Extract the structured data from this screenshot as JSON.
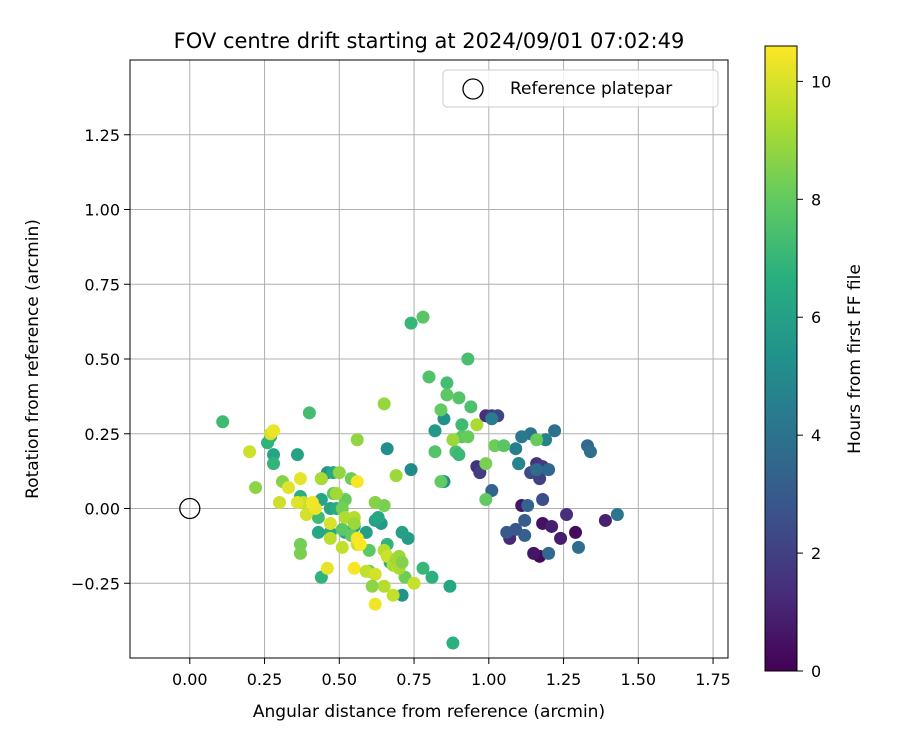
{
  "chart_data": {
    "type": "scatter",
    "title": "FOV centre drift starting at 2024/09/01 07:02:49",
    "xlabel": "Angular distance from reference (arcmin)",
    "ylabel": "Rotation from reference (arcmin)",
    "xlim": [
      -0.2,
      1.8
    ],
    "ylim": [
      -0.5,
      1.5
    ],
    "xticks": [
      "0.00",
      "0.25",
      "0.50",
      "0.75",
      "1.00",
      "1.25",
      "1.50",
      "1.75"
    ],
    "yticks": [
      "−0.25",
      "0.00",
      "0.25",
      "0.50",
      "0.75",
      "1.00",
      "1.25"
    ],
    "grid": true,
    "legend": {
      "placement": "top-right",
      "entries": [
        "Reference platepar"
      ]
    },
    "colorbar": {
      "label": "Hours from first FF file",
      "min": 0,
      "max": 10.6,
      "ticks": [
        "0",
        "2",
        "4",
        "6",
        "8",
        "10"
      ],
      "colormap": "viridis"
    },
    "reference_point": {
      "x": 0.0,
      "y": 0.0
    },
    "points": [
      {
        "x": 1.17,
        "y": -0.16,
        "h": 0.2
      },
      {
        "x": 1.15,
        "y": -0.15,
        "h": 0.6
      },
      {
        "x": 1.29,
        "y": -0.08,
        "h": 0.3
      },
      {
        "x": 1.24,
        "y": -0.1,
        "h": 0.8
      },
      {
        "x": 1.18,
        "y": -0.05,
        "h": 0.5
      },
      {
        "x": 1.11,
        "y": 0.01,
        "h": 0.6
      },
      {
        "x": 1.07,
        "y": -0.1,
        "h": 1.2
      },
      {
        "x": 1.21,
        "y": -0.06,
        "h": 0.9
      },
      {
        "x": 1.26,
        "y": -0.02,
        "h": 1.4
      },
      {
        "x": 1.39,
        "y": -0.04,
        "h": 1.0
      },
      {
        "x": 1.16,
        "y": 0.15,
        "h": 1.6
      },
      {
        "x": 1.18,
        "y": 0.14,
        "h": 1.8
      },
      {
        "x": 1.1,
        "y": 0.15,
        "h": 2.2
      },
      {
        "x": 1.14,
        "y": 0.12,
        "h": 2.4
      },
      {
        "x": 1.17,
        "y": 0.1,
        "h": 2.0
      },
      {
        "x": 1.18,
        "y": 0.03,
        "h": 2.5
      },
      {
        "x": 0.96,
        "y": 0.14,
        "h": 1.5
      },
      {
        "x": 0.97,
        "y": 0.12,
        "h": 1.9
      },
      {
        "x": 0.99,
        "y": 0.31,
        "h": 1.3
      },
      {
        "x": 1.01,
        "y": 0.31,
        "h": 1.7
      },
      {
        "x": 1.03,
        "y": 0.31,
        "h": 2.2
      },
      {
        "x": 1.06,
        "y": -0.08,
        "h": 3.0
      },
      {
        "x": 1.12,
        "y": -0.09,
        "h": 3.2
      },
      {
        "x": 1.13,
        "y": 0.01,
        "h": 3.4
      },
      {
        "x": 1.12,
        "y": -0.04,
        "h": 3.1
      },
      {
        "x": 1.09,
        "y": -0.07,
        "h": 2.9
      },
      {
        "x": 1.2,
        "y": -0.15,
        "h": 3.6
      },
      {
        "x": 1.3,
        "y": -0.13,
        "h": 3.8
      },
      {
        "x": 1.01,
        "y": 0.06,
        "h": 3.4
      },
      {
        "x": 1.16,
        "y": 0.13,
        "h": 3.7
      },
      {
        "x": 1.2,
        "y": 0.13,
        "h": 3.5
      },
      {
        "x": 1.14,
        "y": 0.25,
        "h": 4.0
      },
      {
        "x": 1.11,
        "y": 0.24,
        "h": 4.2
      },
      {
        "x": 1.22,
        "y": 0.26,
        "h": 3.9
      },
      {
        "x": 1.33,
        "y": 0.21,
        "h": 3.6
      },
      {
        "x": 1.34,
        "y": 0.19,
        "h": 3.8
      },
      {
        "x": 1.43,
        "y": -0.02,
        "h": 4.1
      },
      {
        "x": 1.01,
        "y": 0.3,
        "h": 4.4
      },
      {
        "x": 1.19,
        "y": 0.23,
        "h": 4.6
      },
      {
        "x": 1.09,
        "y": 0.2,
        "h": 4.5
      },
      {
        "x": 1.1,
        "y": 0.15,
        "h": 4.8
      },
      {
        "x": 0.74,
        "y": 0.13,
        "h": 5.0
      },
      {
        "x": 0.82,
        "y": 0.26,
        "h": 5.6
      },
      {
        "x": 0.85,
        "y": 0.3,
        "h": 5.3
      },
      {
        "x": 0.85,
        "y": 0.09,
        "h": 5.1
      },
      {
        "x": 0.66,
        "y": 0.2,
        "h": 5.2
      },
      {
        "x": 0.71,
        "y": -0.29,
        "h": 5.4
      },
      {
        "x": 0.73,
        "y": -0.1,
        "h": 5.8
      },
      {
        "x": 0.71,
        "y": -0.08,
        "h": 6.0
      },
      {
        "x": 0.64,
        "y": -0.05,
        "h": 5.7
      },
      {
        "x": 0.62,
        "y": -0.04,
        "h": 6.1
      },
      {
        "x": 0.63,
        "y": -0.03,
        "h": 6.3
      },
      {
        "x": 0.59,
        "y": -0.08,
        "h": 5.9
      },
      {
        "x": 0.55,
        "y": -0.06,
        "h": 6.2
      },
      {
        "x": 0.52,
        "y": -0.08,
        "h": 6.0
      },
      {
        "x": 0.47,
        "y": -0.08,
        "h": 6.4
      },
      {
        "x": 0.43,
        "y": -0.08,
        "h": 6.3
      },
      {
        "x": 0.44,
        "y": 0.1,
        "h": 5.8
      },
      {
        "x": 0.46,
        "y": 0.12,
        "h": 5.6
      },
      {
        "x": 0.48,
        "y": 0.12,
        "h": 6.4
      },
      {
        "x": 0.47,
        "y": 0.0,
        "h": 6.1
      },
      {
        "x": 0.44,
        "y": 0.03,
        "h": 6.2
      },
      {
        "x": 0.49,
        "y": 0.0,
        "h": 6.6
      },
      {
        "x": 0.66,
        "y": -0.12,
        "h": 6.8
      },
      {
        "x": 0.67,
        "y": -0.18,
        "h": 6.5
      },
      {
        "x": 0.28,
        "y": 0.18,
        "h": 6.2
      },
      {
        "x": 0.27,
        "y": 0.24,
        "h": 6.6
      },
      {
        "x": 0.26,
        "y": 0.22,
        "h": 6.8
      },
      {
        "x": 0.28,
        "y": 0.15,
        "h": 6.9
      },
      {
        "x": 0.36,
        "y": 0.18,
        "h": 6.1
      },
      {
        "x": 0.37,
        "y": 0.04,
        "h": 6.7
      },
      {
        "x": 0.44,
        "y": -0.23,
        "h": 6.8
      },
      {
        "x": 0.87,
        "y": -0.26,
        "h": 6.3
      },
      {
        "x": 0.81,
        "y": -0.23,
        "h": 6.7
      },
      {
        "x": 0.88,
        "y": -0.45,
        "h": 6.7
      },
      {
        "x": 0.78,
        "y": -0.2,
        "h": 7.0
      },
      {
        "x": 0.78,
        "y": 0.64,
        "h": 7.8
      },
      {
        "x": 0.74,
        "y": 0.62,
        "h": 7.0
      },
      {
        "x": 0.93,
        "y": 0.5,
        "h": 7.4
      },
      {
        "x": 0.8,
        "y": 0.44,
        "h": 7.6
      },
      {
        "x": 0.86,
        "y": 0.42,
        "h": 7.3
      },
      {
        "x": 0.86,
        "y": 0.38,
        "h": 7.9
      },
      {
        "x": 0.9,
        "y": 0.37,
        "h": 7.7
      },
      {
        "x": 0.84,
        "y": 0.33,
        "h": 8.0
      },
      {
        "x": 0.94,
        "y": 0.34,
        "h": 7.5
      },
      {
        "x": 0.91,
        "y": 0.28,
        "h": 7.2
      },
      {
        "x": 0.89,
        "y": 0.19,
        "h": 7.4
      },
      {
        "x": 0.9,
        "y": 0.18,
        "h": 7.1
      },
      {
        "x": 0.82,
        "y": 0.19,
        "h": 7.7
      },
      {
        "x": 0.84,
        "y": 0.09,
        "h": 8.0
      },
      {
        "x": 0.91,
        "y": 0.24,
        "h": 7.9
      },
      {
        "x": 0.93,
        "y": 0.24,
        "h": 8.1
      },
      {
        "x": 1.02,
        "y": 0.21,
        "h": 8.2
      },
      {
        "x": 1.05,
        "y": 0.21,
        "h": 7.8
      },
      {
        "x": 0.99,
        "y": 0.15,
        "h": 8.4
      },
      {
        "x": 0.99,
        "y": 0.03,
        "h": 8.0
      },
      {
        "x": 1.16,
        "y": 0.23,
        "h": 8.1
      },
      {
        "x": 0.11,
        "y": 0.29,
        "h": 7.2
      },
      {
        "x": 0.4,
        "y": 0.32,
        "h": 7.3
      },
      {
        "x": 0.43,
        "y": -0.03,
        "h": 7.2
      },
      {
        "x": 0.48,
        "y": 0.05,
        "h": 7.9
      },
      {
        "x": 0.52,
        "y": 0.03,
        "h": 8.1
      },
      {
        "x": 0.51,
        "y": 0.0,
        "h": 8.3
      },
      {
        "x": 0.51,
        "y": -0.07,
        "h": 7.9
      },
      {
        "x": 0.54,
        "y": -0.09,
        "h": 8.0
      },
      {
        "x": 0.6,
        "y": -0.14,
        "h": 7.9
      },
      {
        "x": 0.62,
        "y": 0.02,
        "h": 8.6
      },
      {
        "x": 0.65,
        "y": 0.01,
        "h": 8.4
      },
      {
        "x": 0.5,
        "y": 0.12,
        "h": 8.8
      },
      {
        "x": 0.54,
        "y": 0.1,
        "h": 8.2
      },
      {
        "x": 0.37,
        "y": -0.12,
        "h": 8.3
      },
      {
        "x": 0.37,
        "y": -0.15,
        "h": 8.4
      },
      {
        "x": 0.22,
        "y": 0.07,
        "h": 8.7
      },
      {
        "x": 0.31,
        "y": 0.09,
        "h": 8.6
      },
      {
        "x": 0.6,
        "y": -0.21,
        "h": 8.0
      },
      {
        "x": 0.72,
        "y": -0.23,
        "h": 8.2
      },
      {
        "x": 0.65,
        "y": 0.35,
        "h": 8.9
      },
      {
        "x": 0.56,
        "y": 0.23,
        "h": 8.8
      },
      {
        "x": 0.88,
        "y": 0.23,
        "h": 9.0
      },
      {
        "x": 0.96,
        "y": 0.28,
        "h": 9.2
      },
      {
        "x": 0.69,
        "y": 0.11,
        "h": 9.0
      },
      {
        "x": 0.44,
        "y": 0.1,
        "h": 9.2
      },
      {
        "x": 0.49,
        "y": 0.05,
        "h": 9.1
      },
      {
        "x": 0.52,
        "y": -0.03,
        "h": 9.3
      },
      {
        "x": 0.55,
        "y": -0.03,
        "h": 9.4
      },
      {
        "x": 0.51,
        "y": -0.13,
        "h": 9.6
      },
      {
        "x": 0.56,
        "y": -0.12,
        "h": 9.7
      },
      {
        "x": 0.47,
        "y": -0.1,
        "h": 9.5
      },
      {
        "x": 0.47,
        "y": -0.05,
        "h": 10.0
      },
      {
        "x": 0.39,
        "y": -0.02,
        "h": 9.9
      },
      {
        "x": 0.38,
        "y": 0.02,
        "h": 9.7
      },
      {
        "x": 0.3,
        "y": 0.02,
        "h": 9.8
      },
      {
        "x": 0.33,
        "y": 0.07,
        "h": 10.1
      },
      {
        "x": 0.2,
        "y": 0.19,
        "h": 9.8
      },
      {
        "x": 0.27,
        "y": 0.25,
        "h": 10.0
      },
      {
        "x": 0.28,
        "y": 0.26,
        "h": 10.3
      },
      {
        "x": 0.37,
        "y": 0.1,
        "h": 10.2
      },
      {
        "x": 0.42,
        "y": 0.0,
        "h": 10.3
      },
      {
        "x": 0.41,
        "y": 0.02,
        "h": 10.4
      },
      {
        "x": 0.36,
        "y": 0.02,
        "h": 10.1
      },
      {
        "x": 0.56,
        "y": -0.1,
        "h": 10.5
      },
      {
        "x": 0.57,
        "y": -0.12,
        "h": 10.6
      },
      {
        "x": 0.46,
        "y": -0.2,
        "h": 10.2
      },
      {
        "x": 0.55,
        "y": -0.2,
        "h": 10.5
      },
      {
        "x": 0.59,
        "y": -0.21,
        "h": 9.6
      },
      {
        "x": 0.62,
        "y": -0.22,
        "h": 9.9
      },
      {
        "x": 0.62,
        "y": -0.32,
        "h": 10.4
      },
      {
        "x": 0.65,
        "y": -0.14,
        "h": 9.4
      },
      {
        "x": 0.66,
        "y": -0.16,
        "h": 9.8
      },
      {
        "x": 0.68,
        "y": -0.19,
        "h": 9.3
      },
      {
        "x": 0.69,
        "y": -0.17,
        "h": 9.1
      },
      {
        "x": 0.7,
        "y": -0.16,
        "h": 9.0
      },
      {
        "x": 0.7,
        "y": -0.2,
        "h": 9.2
      },
      {
        "x": 0.65,
        "y": -0.26,
        "h": 9.4
      },
      {
        "x": 0.68,
        "y": -0.29,
        "h": 9.6
      },
      {
        "x": 0.75,
        "y": -0.25,
        "h": 9.7
      },
      {
        "x": 0.56,
        "y": 0.09,
        "h": 10.5
      },
      {
        "x": 0.61,
        "y": -0.26,
        "h": 8.7
      },
      {
        "x": 0.55,
        "y": -0.05,
        "h": 9.0
      },
      {
        "x": 0.71,
        "y": -0.18,
        "h": 8.6
      }
    ]
  }
}
